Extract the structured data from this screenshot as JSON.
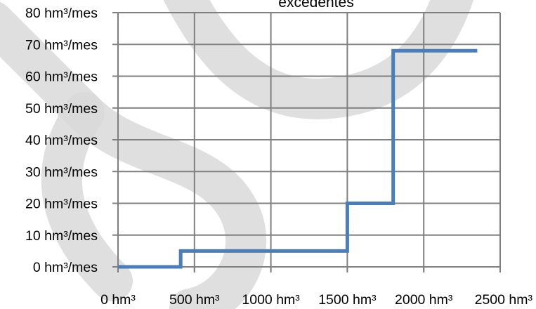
{
  "chart_data": {
    "type": "line",
    "title": "excedentes",
    "xlabel": "",
    "ylabel": "",
    "xlim": [
      0,
      2500
    ],
    "ylim": [
      0,
      80
    ],
    "x_ticks": [
      0,
      500,
      1000,
      1500,
      2000,
      2500
    ],
    "y_ticks": [
      0,
      10,
      20,
      30,
      40,
      50,
      60,
      70,
      80
    ],
    "x_tick_labels": [
      "0 hm³",
      "500 hm³",
      "1000 hm³",
      "1500 hm³",
      "2000 hm³",
      "2500 hm³"
    ],
    "y_tick_labels": [
      "0 hm³/mes",
      "10 hm³/mes",
      "20 hm³/mes",
      "30 hm³/mes",
      "40 hm³/mes",
      "50 hm³/mes",
      "60 hm³/mes",
      "70 hm³/mes",
      "80 hm³/mes"
    ],
    "grid": true,
    "series": [
      {
        "color": "#4a7ebb",
        "step": true,
        "points": [
          {
            "x": 0,
            "y": 0
          },
          {
            "x": 410,
            "y": 0
          },
          {
            "x": 410,
            "y": 5
          },
          {
            "x": 1500,
            "y": 5
          },
          {
            "x": 1500,
            "y": 20
          },
          {
            "x": 1800,
            "y": 20
          },
          {
            "x": 1800,
            "y": 68
          },
          {
            "x": 2350,
            "y": 68
          }
        ]
      }
    ]
  },
  "colors": {
    "grid": "#808080",
    "series": "#4a7ebb",
    "watermark": "#d9d9d9"
  }
}
